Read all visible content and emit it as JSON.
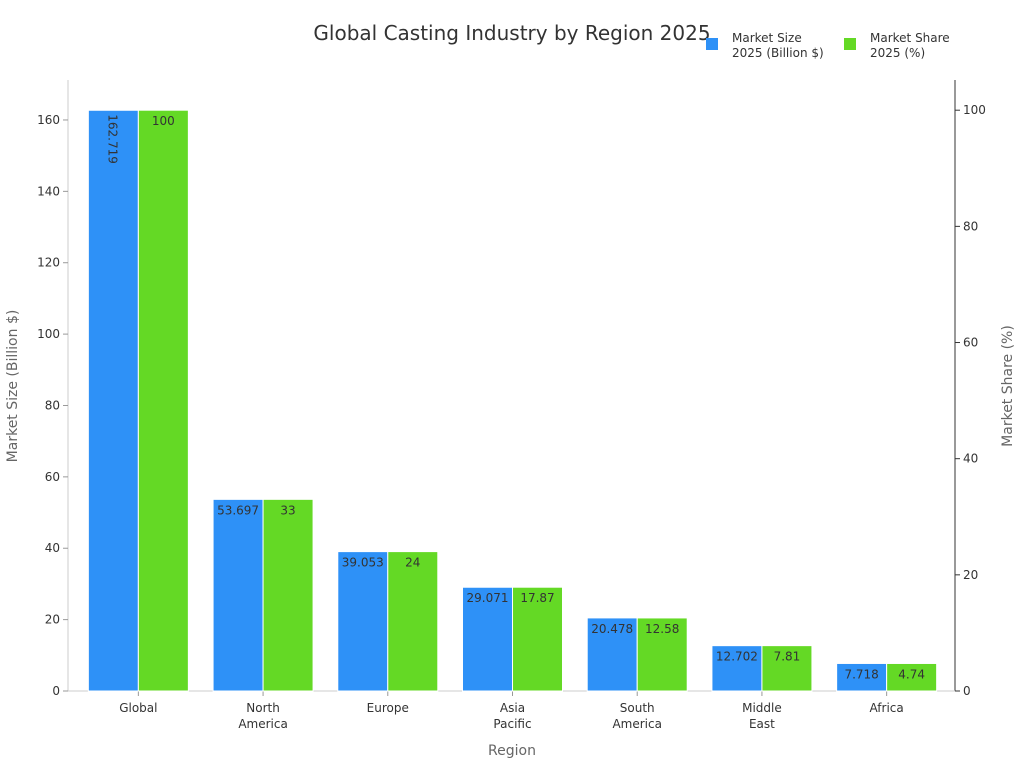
{
  "chart_data": {
    "type": "bar",
    "title": "Global Casting Industry by Region 2025",
    "xlabel": "Region",
    "ylabel": "Market Size (Billion $)",
    "y2label": "Market Share (%)",
    "categories": [
      [
        "Global"
      ],
      [
        "North",
        "America"
      ],
      [
        "Europe"
      ],
      [
        "Asia",
        "Pacific"
      ],
      [
        "South",
        "America"
      ],
      [
        "Middle",
        "East"
      ],
      [
        "Africa"
      ]
    ],
    "series": [
      {
        "name": "Market Size 2025 (Billion $)",
        "legend_lines": [
          "Market Size",
          "2025 (Billion $)"
        ],
        "axis": "left",
        "color": "#2e91f7",
        "values": [
          162.719,
          53.697,
          39.053,
          29.071,
          20.478,
          12.702,
          7.718
        ]
      },
      {
        "name": "Market Share 2025 (%)",
        "legend_lines": [
          "Market Share",
          "2025 (%)"
        ],
        "axis": "right",
        "color": "#64d925",
        "values": [
          100,
          33,
          24,
          17.87,
          12.58,
          7.81,
          4.74
        ]
      }
    ],
    "ylim": [
      0,
      171.2
    ],
    "y2lim": [
      0,
      105.2
    ],
    "yticks": [
      0,
      20,
      40,
      60,
      80,
      100,
      120,
      140,
      160
    ],
    "y2ticks": [
      0,
      20,
      40,
      60,
      80,
      100
    ],
    "legend": "top-right",
    "grid": false
  }
}
